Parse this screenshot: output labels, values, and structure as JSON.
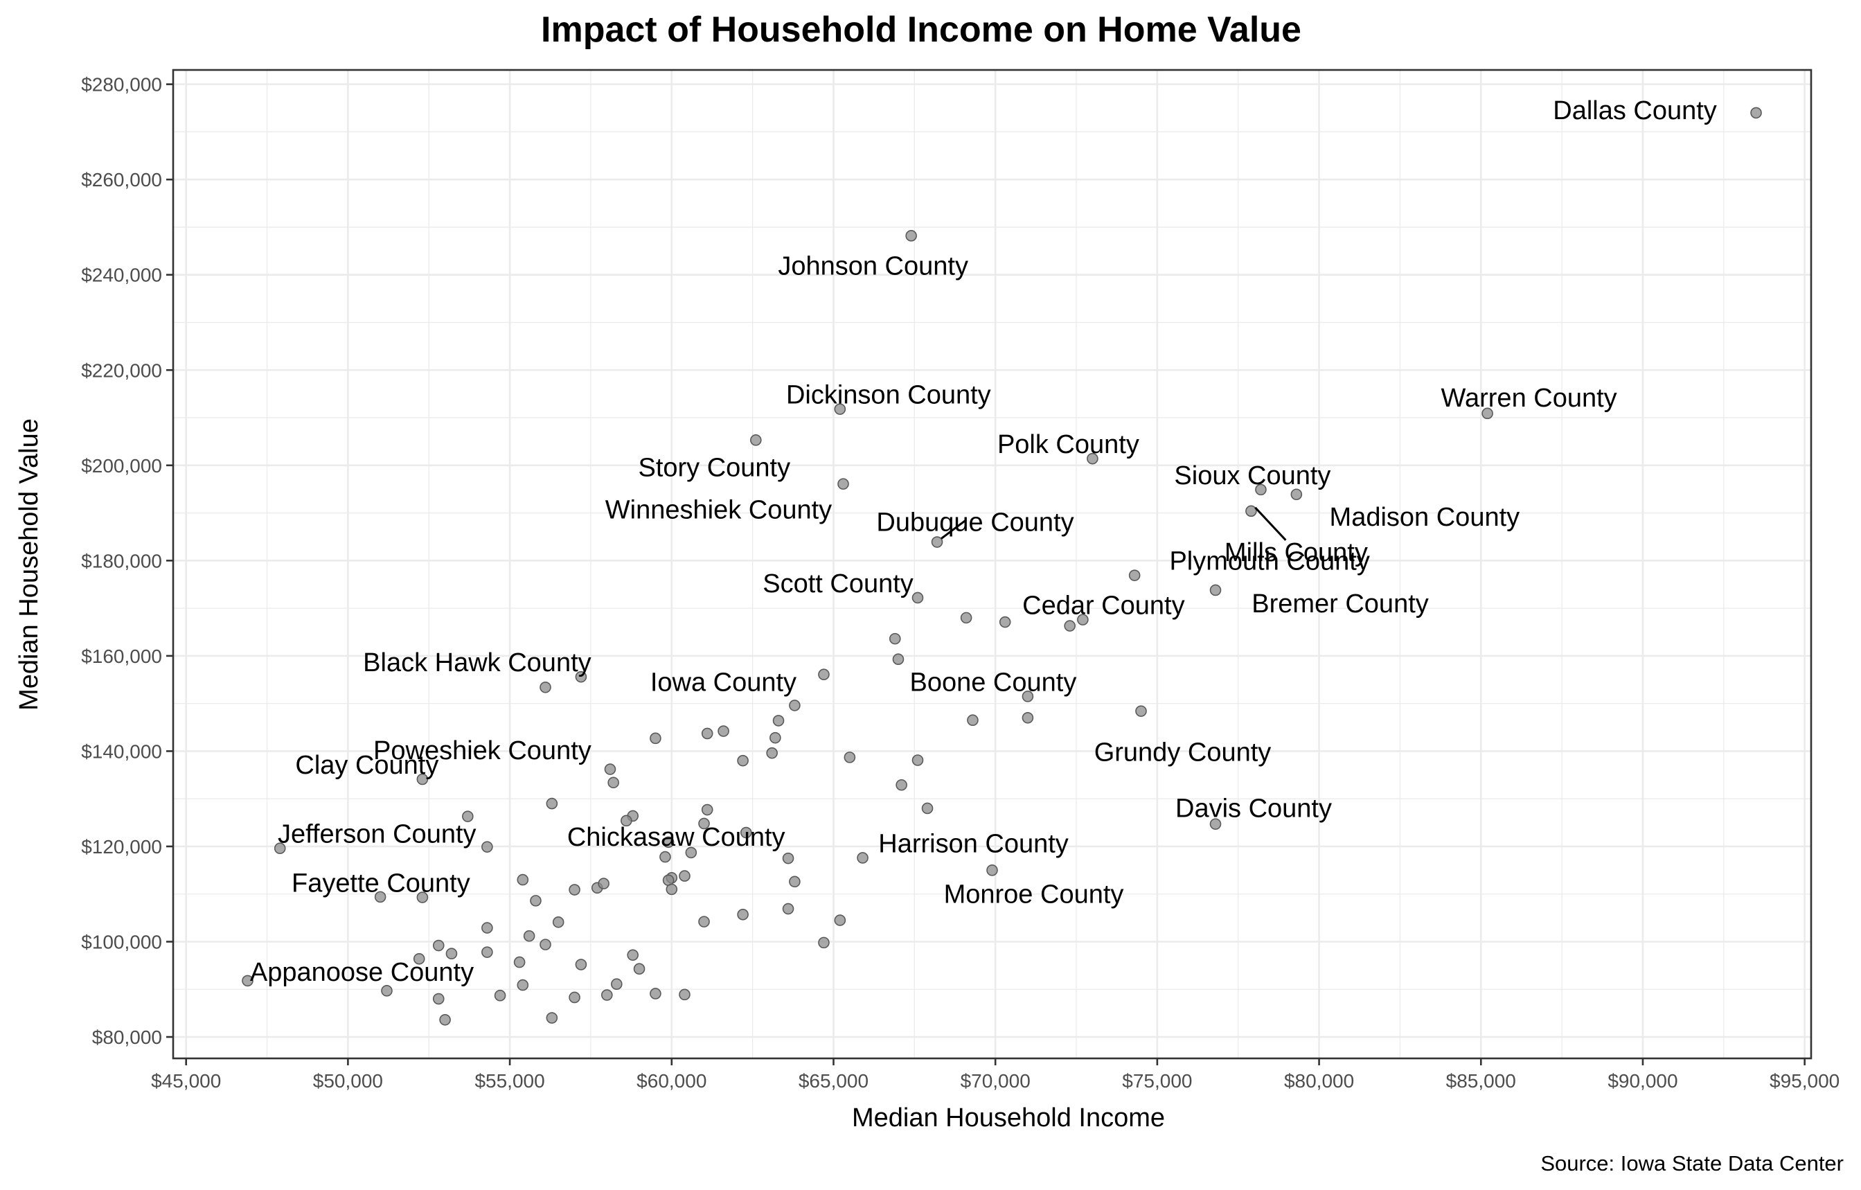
{
  "chart_data": {
    "type": "scatter",
    "title": "Impact of Household Income on Home Value",
    "xlabel": "Median Household Income",
    "ylabel": "Median Household Value",
    "caption": "Source: Iowa State Data Center",
    "xlim": [
      44600,
      95200
    ],
    "ylim": [
      75500,
      283000
    ],
    "xticks": [
      45000,
      50000,
      55000,
      60000,
      65000,
      70000,
      75000,
      80000,
      85000,
      90000,
      95000
    ],
    "xtick_labels": [
      "$45,000",
      "$50,000",
      "$55,000",
      "$60,000",
      "$65,000",
      "$70,000",
      "$75,000",
      "$80,000",
      "$85,000",
      "$90,000",
      "$95,000"
    ],
    "yticks": [
      80000,
      100000,
      120000,
      140000,
      160000,
      180000,
      200000,
      220000,
      240000,
      260000,
      280000
    ],
    "ytick_labels": [
      "$80,000",
      "$100,000",
      "$120,000",
      "$140,000",
      "$160,000",
      "$180,000",
      "$200,000",
      "$220,000",
      "$240,000",
      "$260,000",
      "$280,000"
    ],
    "grid": true,
    "labeled_points": [
      {
        "name": "Dallas County",
        "x": 93500,
        "y": 274000
      },
      {
        "name": "Johnson County",
        "x": 67400,
        "y": 248200
      },
      {
        "name": "Dickinson County",
        "x": 65200,
        "y": 211800
      },
      {
        "name": "Warren County",
        "x": 85200,
        "y": 210900
      },
      {
        "name": "Story County",
        "x": 62600,
        "y": 205300
      },
      {
        "name": "Polk County",
        "x": 73000,
        "y": 201400
      },
      {
        "name": "Winneshiek County",
        "x": 65300,
        "y": 196100
      },
      {
        "name": "Sioux County",
        "x": 78200,
        "y": 194900
      },
      {
        "name": "Madison County",
        "x": 79300,
        "y": 193900
      },
      {
        "name": "Mills County",
        "x": 77900,
        "y": 190400
      },
      {
        "name": "Dubuque County",
        "x": 68200,
        "y": 183900
      },
      {
        "name": "Plymouth County",
        "x": 74300,
        "y": 176900
      },
      {
        "name": "Bremer County",
        "x": 76800,
        "y": 173800
      },
      {
        "name": "Scott County",
        "x": 67600,
        "y": 172200
      },
      {
        "name": "Cedar County",
        "x": 72700,
        "y": 167600
      },
      {
        "name": "Black Hawk County",
        "x": 57200,
        "y": 155600
      },
      {
        "name": "Iowa County",
        "x": 64700,
        "y": 156100
      },
      {
        "name": "Boone County",
        "x": 71000,
        "y": 151500
      },
      {
        "name": "Grundy County",
        "x": 74500,
        "y": 148400
      },
      {
        "name": "Poweshiek County",
        "x": 59500,
        "y": 142700
      },
      {
        "name": "Clay County",
        "x": 52300,
        "y": 134100
      },
      {
        "name": "Chickasaw County",
        "x": 61100,
        "y": 127700
      },
      {
        "name": "Davis County",
        "x": 76800,
        "y": 124700
      },
      {
        "name": "Jefferson County",
        "x": 47900,
        "y": 119600
      },
      {
        "name": "Harrison County",
        "x": 65900,
        "y": 117600
      },
      {
        "name": "Monroe County",
        "x": 69900,
        "y": 115000
      },
      {
        "name": "Fayette County",
        "x": 52300,
        "y": 109300
      },
      {
        "name": "Appanoose County",
        "x": 46900,
        "y": 91800
      }
    ],
    "other_points": [
      [
        56100,
        153400
      ],
      [
        66900,
        163600
      ],
      [
        67000,
        159300
      ],
      [
        69100,
        168000
      ],
      [
        70300,
        167100
      ],
      [
        72300,
        166300
      ],
      [
        71000,
        147000
      ],
      [
        69300,
        146500
      ],
      [
        63300,
        146400
      ],
      [
        63800,
        149600
      ],
      [
        61100,
        143700
      ],
      [
        61600,
        144200
      ],
      [
        63200,
        142800
      ],
      [
        63100,
        139600
      ],
      [
        62200,
        138000
      ],
      [
        58100,
        136200
      ],
      [
        58200,
        133400
      ],
      [
        65500,
        138700
      ],
      [
        67600,
        138100
      ],
      [
        67100,
        132900
      ],
      [
        67900,
        128000
      ],
      [
        56300,
        129000
      ],
      [
        58800,
        126400
      ],
      [
        58600,
        125400
      ],
      [
        61000,
        124800
      ],
      [
        62300,
        122900
      ],
      [
        53700,
        126300
      ],
      [
        54300,
        119900
      ],
      [
        59900,
        120900
      ],
      [
        59800,
        117800
      ],
      [
        60600,
        118700
      ],
      [
        63600,
        117500
      ],
      [
        60400,
        113800
      ],
      [
        60000,
        113400
      ],
      [
        59900,
        112900
      ],
      [
        60000,
        111000
      ],
      [
        63800,
        112600
      ],
      [
        57000,
        110900
      ],
      [
        57700,
        111300
      ],
      [
        57900,
        112200
      ],
      [
        55400,
        113000
      ],
      [
        55800,
        108600
      ],
      [
        51000,
        109400
      ],
      [
        63600,
        106900
      ],
      [
        62200,
        105700
      ],
      [
        61000,
        104200
      ],
      [
        65200,
        104500
      ],
      [
        64700,
        99800
      ],
      [
        54300,
        102900
      ],
      [
        55600,
        101200
      ],
      [
        56500,
        104100
      ],
      [
        56100,
        99400
      ],
      [
        52800,
        99200
      ],
      [
        53200,
        97500
      ],
      [
        54300,
        97800
      ],
      [
        58800,
        97200
      ],
      [
        59000,
        94300
      ],
      [
        57200,
        95200
      ],
      [
        55300,
        95700
      ],
      [
        52200,
        96400
      ],
      [
        51200,
        89700
      ],
      [
        52800,
        88000
      ],
      [
        54700,
        88700
      ],
      [
        55400,
        90900
      ],
      [
        53000,
        83600
      ],
      [
        56300,
        84000
      ],
      [
        57000,
        88300
      ],
      [
        58000,
        88800
      ],
      [
        58300,
        91100
      ],
      [
        59500,
        89100
      ],
      [
        60400,
        88900
      ]
    ]
  }
}
